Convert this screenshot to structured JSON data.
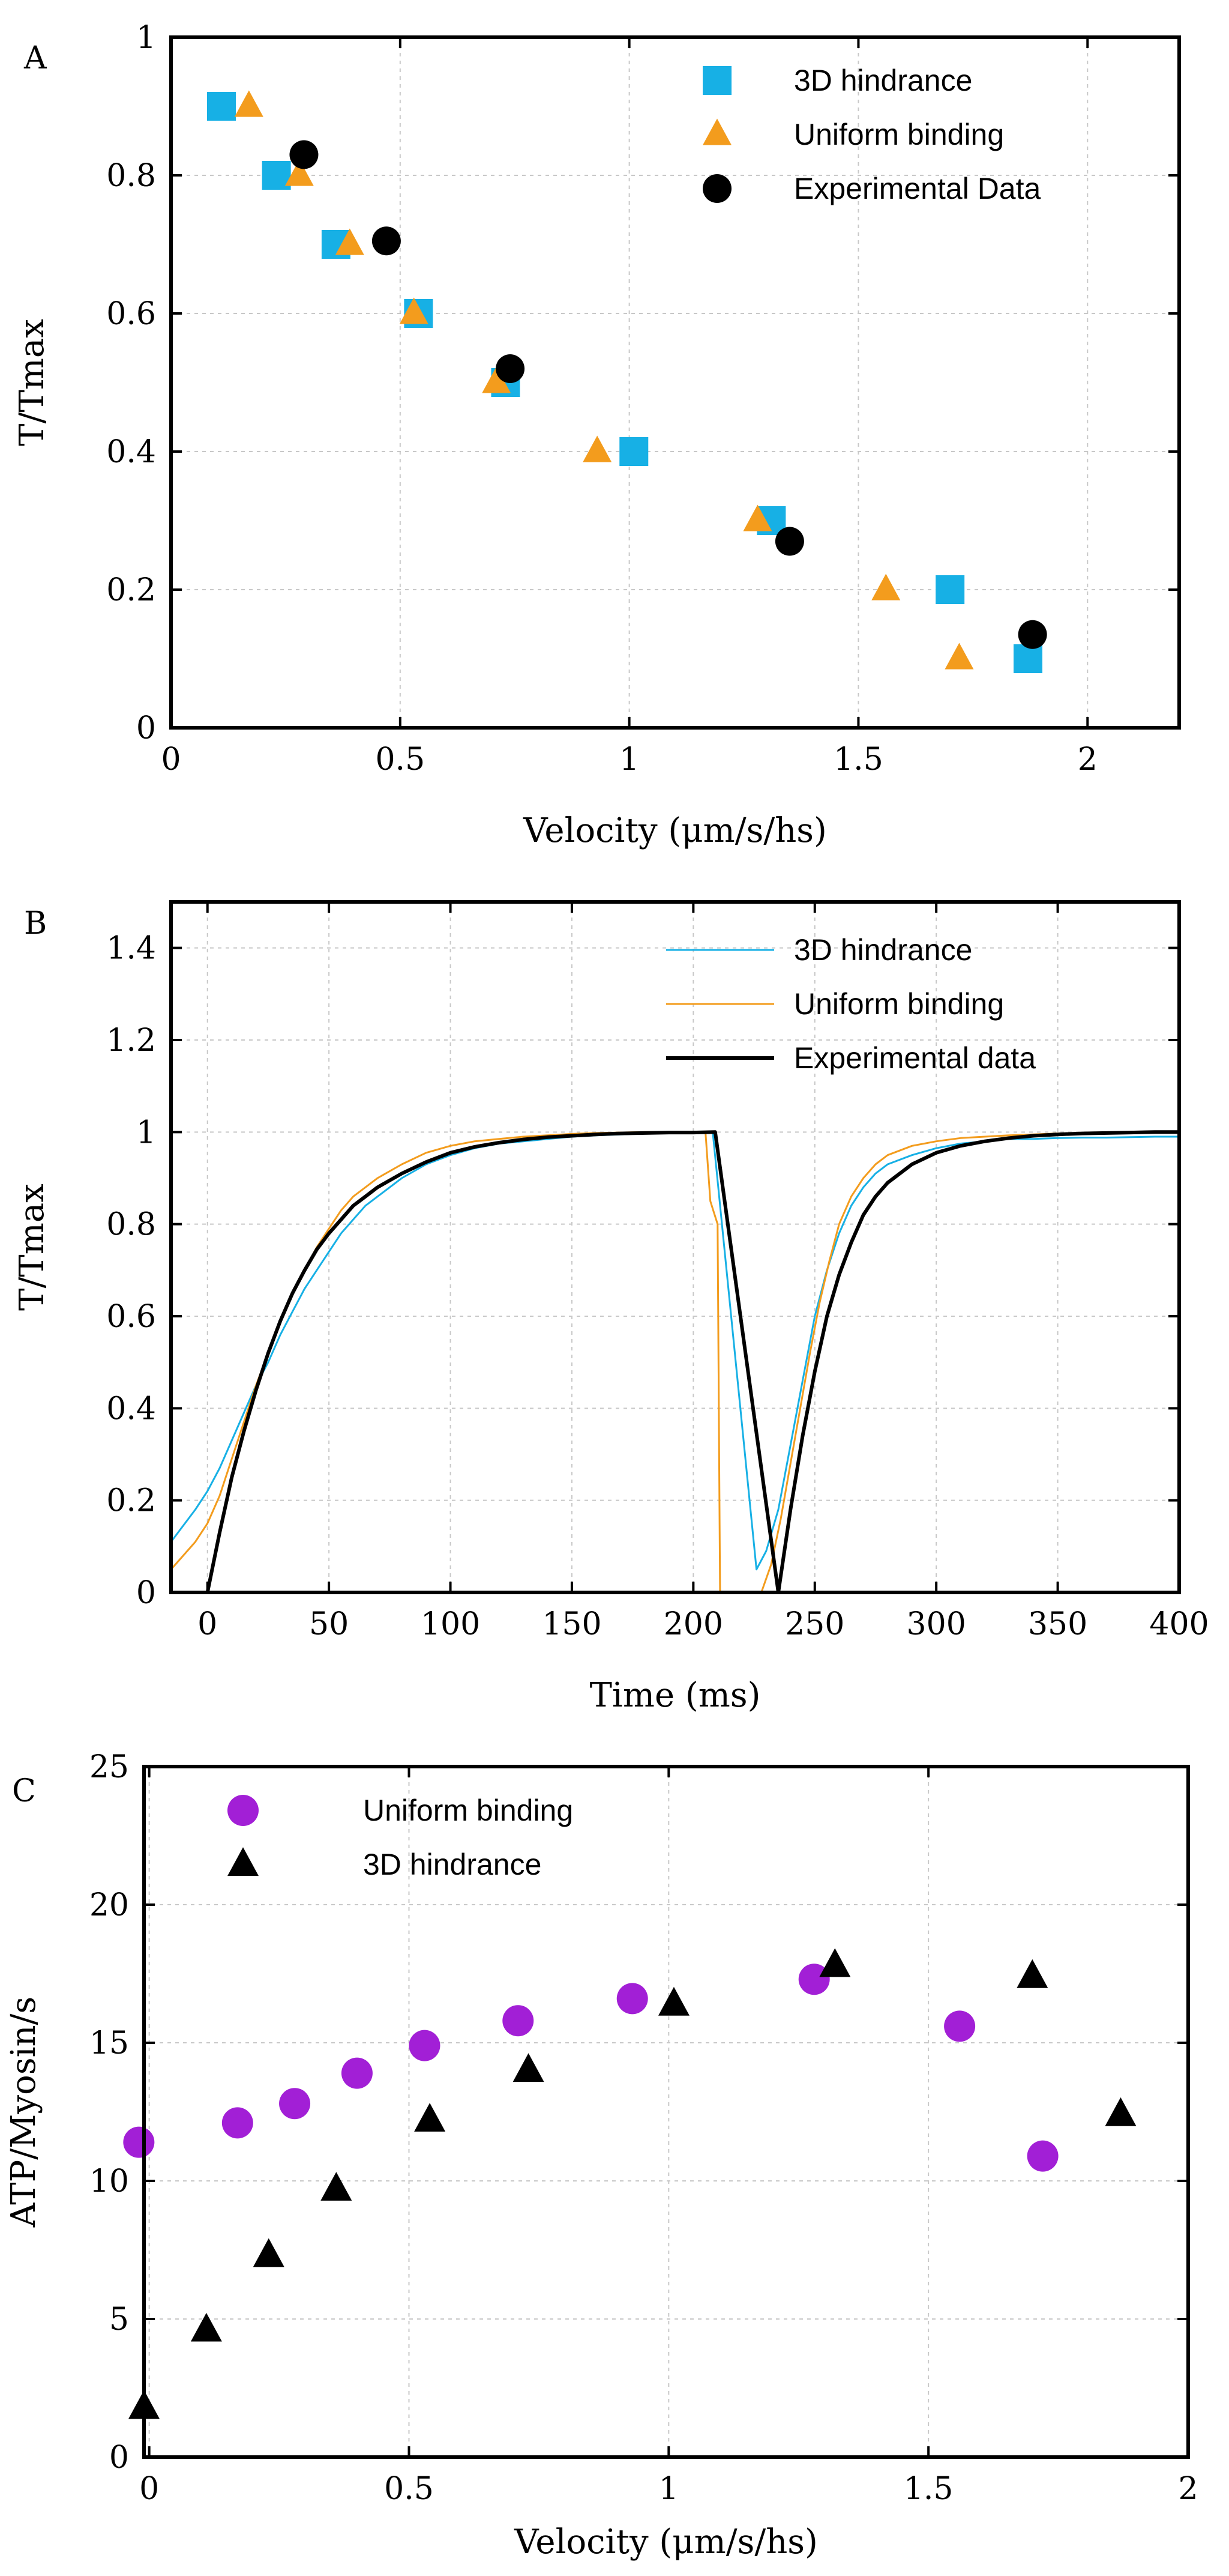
{
  "colors": {
    "blue": "#17b0e5",
    "orange": "#f39c1d",
    "black": "#000000",
    "purple": "#a21fd6"
  },
  "chart_data": [
    {
      "panel": "A",
      "type": "scatter",
      "xlabel": "Velocity (μm/s/hs)",
      "ylabel": "T/Tmax",
      "xlim": [
        0,
        2.2
      ],
      "ylim": [
        0,
        1
      ],
      "xticks": [
        0,
        0.5,
        1,
        1.5,
        2
      ],
      "xtick_labels": [
        "0",
        "0.5",
        "1",
        "1.5",
        "2"
      ],
      "yticks": [
        0,
        0.2,
        0.4,
        0.6,
        0.8,
        1
      ],
      "ytick_labels": [
        "0",
        "0.2",
        "0.4",
        "0.6",
        "0.8",
        "1"
      ],
      "legend_position": "top-right",
      "series": [
        {
          "name": "3D hindrance",
          "marker": "square",
          "color": "#17b0e5",
          "x": [
            0.11,
            0.23,
            0.36,
            0.54,
            0.73,
            1.01,
            1.31,
            1.7,
            1.87
          ],
          "y": [
            0.9,
            0.8,
            0.7,
            0.6,
            0.5,
            0.4,
            0.3,
            0.2,
            0.1
          ]
        },
        {
          "name": "Uniform binding",
          "marker": "triangle",
          "color": "#f39c1d",
          "x": [
            0.17,
            0.28,
            0.39,
            0.53,
            0.71,
            0.93,
            1.28,
            1.56,
            1.72
          ],
          "y": [
            0.9,
            0.8,
            0.7,
            0.6,
            0.5,
            0.4,
            0.3,
            0.2,
            0.1
          ]
        },
        {
          "name": "Experimental Data",
          "marker": "circle",
          "color": "#000000",
          "x": [
            0.29,
            0.47,
            0.74,
            1.35,
            1.88
          ],
          "y": [
            0.83,
            0.705,
            0.52,
            0.27,
            0.135
          ]
        }
      ]
    },
    {
      "panel": "B",
      "type": "line",
      "xlabel": "Time (ms)",
      "ylabel": "T/Tmax",
      "xlim": [
        -15,
        400
      ],
      "ylim": [
        0,
        1.5
      ],
      "xticks": [
        0,
        50,
        100,
        150,
        200,
        250,
        300,
        350,
        400
      ],
      "xtick_labels": [
        "0",
        "50",
        "100",
        "150",
        "200",
        "250",
        "300",
        "350",
        "400"
      ],
      "yticks": [
        0,
        0.2,
        0.4,
        0.6,
        0.8,
        1,
        1.2,
        1.4
      ],
      "ytick_labels": [
        "0",
        "0.2",
        "0.4",
        "0.6",
        "0.8",
        "1",
        "1.2",
        "1.4"
      ],
      "legend_position": "top-right",
      "series": [
        {
          "name": "3D hindrance",
          "color": "#17b0e5",
          "width": 3,
          "x": [
            -15,
            -5,
            0,
            5,
            10,
            15,
            20,
            25,
            30,
            35,
            40,
            45,
            50,
            55,
            60,
            65,
            70,
            80,
            90,
            100,
            110,
            120,
            130,
            140,
            150,
            160,
            170,
            180,
            190,
            200,
            208,
            226,
            230,
            235,
            240,
            245,
            250,
            255,
            260,
            265,
            270,
            275,
            280,
            290,
            300,
            310,
            320,
            330,
            340,
            350,
            360,
            370,
            380,
            390,
            400
          ],
          "y": [
            0.11,
            0.18,
            0.22,
            0.27,
            0.33,
            0.39,
            0.45,
            0.5,
            0.56,
            0.61,
            0.66,
            0.7,
            0.74,
            0.78,
            0.81,
            0.84,
            0.86,
            0.9,
            0.93,
            0.95,
            0.965,
            0.975,
            0.98,
            0.985,
            0.99,
            0.993,
            0.995,
            0.997,
            0.998,
            0.999,
            1.0,
            0.05,
            0.09,
            0.18,
            0.32,
            0.46,
            0.6,
            0.7,
            0.78,
            0.84,
            0.88,
            0.91,
            0.93,
            0.95,
            0.965,
            0.975,
            0.98,
            0.985,
            0.985,
            0.987,
            0.988,
            0.988,
            0.989,
            0.99,
            0.99
          ]
        },
        {
          "name": "Uniform binding",
          "color": "#f39c1d",
          "width": 3,
          "x": [
            -15,
            -5,
            0,
            5,
            10,
            15,
            20,
            25,
            30,
            35,
            40,
            45,
            50,
            55,
            60,
            65,
            70,
            80,
            90,
            100,
            110,
            120,
            130,
            140,
            150,
            160,
            170,
            180,
            190,
            200,
            205,
            207,
            210,
            211,
            228,
            232,
            236,
            240,
            244,
            248,
            252,
            256,
            260,
            265,
            270,
            275,
            280,
            290,
            300,
            310,
            320,
            330,
            340,
            350,
            360,
            370,
            380,
            390,
            400
          ],
          "y": [
            0.05,
            0.11,
            0.15,
            0.21,
            0.29,
            0.37,
            0.45,
            0.52,
            0.59,
            0.65,
            0.7,
            0.75,
            0.79,
            0.83,
            0.86,
            0.88,
            0.9,
            0.93,
            0.955,
            0.97,
            0.98,
            0.985,
            0.99,
            0.993,
            0.996,
            0.998,
            0.999,
            1.0,
            1.0,
            1.0,
            1.0,
            0.85,
            0.8,
            0.0,
            0.0,
            0.06,
            0.16,
            0.28,
            0.4,
            0.52,
            0.63,
            0.72,
            0.8,
            0.86,
            0.9,
            0.93,
            0.95,
            0.97,
            0.98,
            0.987,
            0.99,
            0.993,
            0.995,
            0.997,
            0.998,
            0.999,
            1.0,
            1.0,
            1.0
          ]
        },
        {
          "name": "Experimental data",
          "color": "#000000",
          "width": 6,
          "x": [
            0,
            5,
            10,
            15,
            20,
            25,
            30,
            35,
            40,
            45,
            50,
            55,
            60,
            65,
            70,
            80,
            90,
            100,
            110,
            120,
            130,
            140,
            150,
            160,
            170,
            180,
            190,
            200,
            209,
            235,
            240,
            245,
            250,
            255,
            260,
            265,
            270,
            275,
            280,
            290,
            300,
            310,
            320,
            330,
            340,
            350,
            360,
            370,
            380,
            390,
            400
          ],
          "y": [
            0.0,
            0.13,
            0.25,
            0.35,
            0.44,
            0.52,
            0.59,
            0.65,
            0.7,
            0.745,
            0.78,
            0.81,
            0.84,
            0.86,
            0.88,
            0.91,
            0.935,
            0.955,
            0.968,
            0.977,
            0.984,
            0.989,
            0.992,
            0.995,
            0.997,
            0.998,
            0.999,
            0.999,
            1.0,
            0.0,
            0.18,
            0.34,
            0.48,
            0.6,
            0.69,
            0.76,
            0.82,
            0.86,
            0.89,
            0.93,
            0.955,
            0.97,
            0.98,
            0.987,
            0.992,
            0.995,
            0.997,
            0.998,
            0.999,
            1.0,
            1.0
          ]
        }
      ]
    },
    {
      "panel": "C",
      "type": "scatter",
      "xlabel": "Velocity (μm/s/hs)",
      "ylabel": "ATP/Myosin/s",
      "xlim": [
        -0.01,
        2
      ],
      "ylim": [
        0,
        25
      ],
      "xticks": [
        0,
        0.5,
        1,
        1.5,
        2
      ],
      "xtick_labels": [
        "0",
        "0.5",
        "1",
        "1.5",
        "2"
      ],
      "yticks": [
        0,
        5,
        10,
        15,
        20,
        25
      ],
      "ytick_labels": [
        "0",
        "5",
        "10",
        "15",
        "20",
        "25"
      ],
      "legend_position": "top-left",
      "series": [
        {
          "name": "Uniform binding",
          "marker": "circle",
          "color": "#a21fd6",
          "x": [
            -0.02,
            0.17,
            0.28,
            0.4,
            0.53,
            0.71,
            0.93,
            1.28,
            1.56,
            1.72
          ],
          "y": [
            11.4,
            12.1,
            12.8,
            13.9,
            14.9,
            15.8,
            16.6,
            17.3,
            15.6,
            10.9
          ]
        },
        {
          "name": "3D hindrance",
          "marker": "triangle",
          "color": "#000000",
          "x": [
            -0.01,
            0.11,
            0.23,
            0.36,
            0.54,
            0.73,
            1.01,
            1.32,
            1.7,
            1.87
          ],
          "y": [
            1.8,
            4.6,
            7.3,
            9.7,
            12.2,
            14.0,
            16.4,
            17.8,
            17.4,
            12.4
          ]
        }
      ]
    }
  ]
}
